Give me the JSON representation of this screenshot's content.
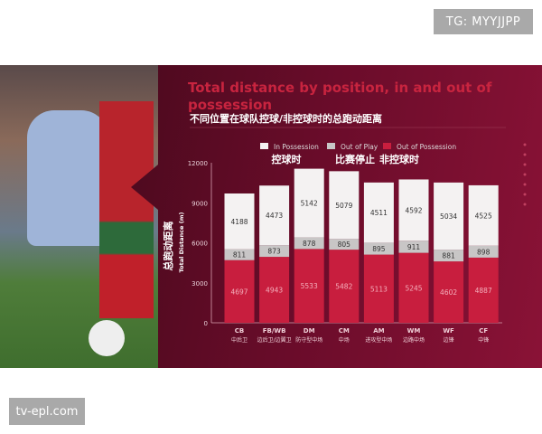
{
  "watermarks": {
    "top": "TG: MYYJJPP",
    "bottom": "tv-epl.com"
  },
  "chart_data": {
    "type": "bar",
    "stacked": true,
    "title": "Total distance by position, in and out of possession",
    "subtitle": "不同位置在球队控球/非控球时的总跑动距离",
    "ylabel": "Total Distance (m)",
    "ylabel_cn": "总跑动距离",
    "ylim": [
      0,
      12000
    ],
    "yticks": [
      0,
      3000,
      6000,
      9000,
      12000
    ],
    "categories": [
      "CB",
      "FB/WB",
      "DM",
      "CM",
      "AM",
      "WM",
      "WF",
      "CF"
    ],
    "categories_cn": [
      "中后卫",
      "边后卫/边翼卫",
      "防守型中场",
      "中场",
      "进攻型中场",
      "边路中场",
      "边锋",
      "中锋"
    ],
    "legend": [
      {
        "name": "In Possession",
        "cn": "控球时",
        "color": "#f4f2f2"
      },
      {
        "name": "Out of Play",
        "cn": "比赛停止",
        "color": "#c8c6c6"
      },
      {
        "name": "Out of Possession",
        "cn": "非控球时",
        "color": "#c81e3e"
      }
    ],
    "series": [
      {
        "name": "Out of Possession",
        "values": [
          4697,
          4943,
          5533,
          5482,
          5113,
          5245,
          4602,
          4887
        ]
      },
      {
        "name": "Out of Play",
        "values": [
          811,
          873,
          878,
          805,
          895,
          911,
          881,
          898
        ]
      },
      {
        "name": "In Possession",
        "values": [
          4188,
          4473,
          5142,
          5079,
          4511,
          4592,
          5034,
          4525
        ]
      }
    ]
  }
}
